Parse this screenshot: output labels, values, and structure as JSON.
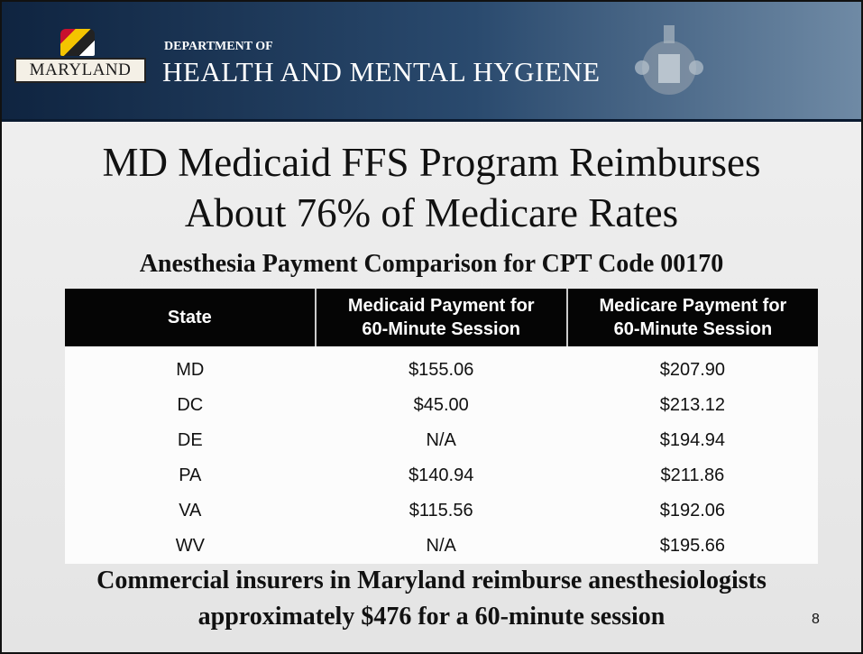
{
  "header": {
    "logo": "MARYLAND",
    "department": "DEPARTMENT OF",
    "name": "HEALTH AND MENTAL HYGIENE"
  },
  "title": [
    "MD Medicaid FFS Program Reimburses",
    "About 76% of Medicare Rates"
  ],
  "subtitle": "Anesthesia Payment Comparison for CPT Code 00170",
  "table": {
    "columns": [
      [
        "State"
      ],
      [
        "Medicaid Payment for",
        "60-Minute Session"
      ],
      [
        "Medicare Payment for",
        "60-Minute Session"
      ]
    ],
    "rows": [
      [
        "MD",
        "$155.06",
        "$207.90"
      ],
      [
        "DC",
        "$45.00",
        "$213.12"
      ],
      [
        "DE",
        "N/A",
        "$194.94"
      ],
      [
        "PA",
        "$140.94",
        "$211.86"
      ],
      [
        "VA",
        "$115.56",
        "$192.06"
      ],
      [
        "WV",
        "N/A",
        "$195.66"
      ]
    ]
  },
  "footer": [
    "Commercial insurers in Maryland reimburse anesthesiologists",
    "approximately $476 for a 60-minute session"
  ],
  "page_number": "8"
}
